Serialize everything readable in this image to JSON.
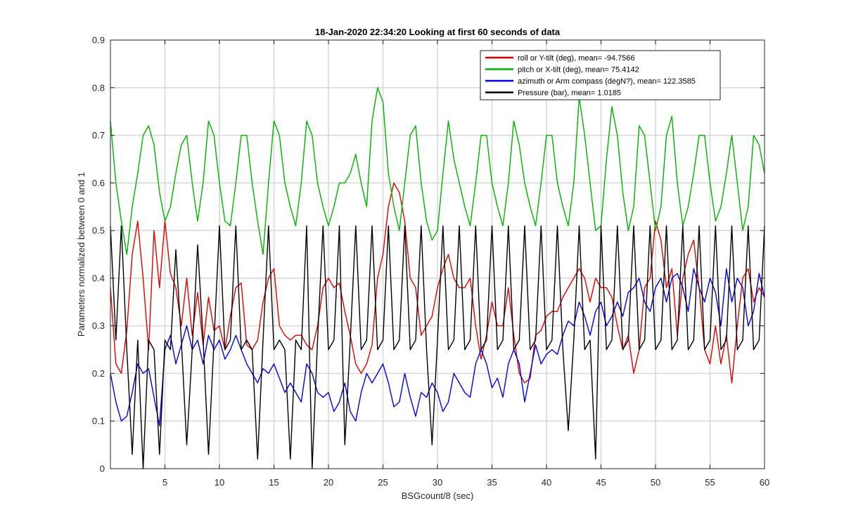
{
  "chart_data": {
    "type": "line",
    "title": "18-Jan-2020 22:34:20 Looking at first 60 seconds of data",
    "xlabel": "BSGcount/8 (sec)",
    "ylabel": "Parameters normalized between 0 and 1",
    "xlim": [
      0,
      60
    ],
    "ylim": [
      0,
      0.9
    ],
    "xticks": [
      5,
      10,
      15,
      20,
      25,
      30,
      35,
      40,
      45,
      50,
      55,
      60
    ],
    "yticks": [
      0,
      0.1,
      0.2,
      0.3,
      0.4,
      0.5,
      0.6,
      0.7,
      0.8,
      0.9
    ],
    "grid": true,
    "legend_position": "top-right",
    "series": [
      {
        "name": "roll or Y-tilt (deg), mean= -94.7566",
        "color": "#e00000",
        "x": [
          0,
          0.5,
          1,
          1.5,
          2,
          2.5,
          3,
          3.5,
          4,
          4.5,
          5,
          5.5,
          6,
          6.5,
          7,
          7.5,
          8,
          8.5,
          9,
          9.5,
          10,
          10.5,
          11,
          11.5,
          12,
          12.5,
          13,
          13.5,
          14,
          14.5,
          15,
          15.5,
          16,
          16.5,
          17,
          17.5,
          18,
          18.5,
          19,
          19.5,
          20,
          20.5,
          21,
          21.5,
          22,
          22.5,
          23,
          23.5,
          24,
          24.5,
          25,
          25.5,
          26,
          26.5,
          27,
          27.5,
          28,
          28.5,
          29,
          29.5,
          30,
          30.5,
          31,
          31.5,
          32,
          32.5,
          33,
          33.5,
          34,
          34.5,
          35,
          35.5,
          36,
          36.5,
          37,
          37.5,
          38,
          38.5,
          39,
          39.5,
          40,
          40.5,
          41,
          41.5,
          42,
          42.5,
          43,
          43.5,
          44,
          44.5,
          45,
          45.5,
          46,
          46.5,
          47,
          47.5,
          48,
          48.5,
          49,
          49.5,
          50,
          50.5,
          51,
          51.5,
          52,
          52.5,
          53,
          53.5,
          54,
          54.5,
          55,
          55.5,
          56,
          56.5,
          57,
          57.5,
          58,
          58.5,
          59,
          59.5,
          60
        ],
        "y": [
          0.38,
          0.22,
          0.2,
          0.29,
          0.45,
          0.52,
          0.4,
          0.25,
          0.5,
          0.38,
          0.52,
          0.41,
          0.38,
          0.3,
          0.4,
          0.28,
          0.37,
          0.26,
          0.36,
          0.29,
          0.3,
          0.25,
          0.32,
          0.38,
          0.39,
          0.26,
          0.25,
          0.27,
          0.35,
          0.4,
          0.42,
          0.3,
          0.28,
          0.27,
          0.28,
          0.28,
          0.26,
          0.25,
          0.3,
          0.38,
          0.4,
          0.38,
          0.39,
          0.33,
          0.28,
          0.22,
          0.2,
          0.22,
          0.26,
          0.4,
          0.45,
          0.55,
          0.6,
          0.58,
          0.52,
          0.4,
          0.38,
          0.28,
          0.3,
          0.32,
          0.38,
          0.42,
          0.45,
          0.4,
          0.38,
          0.38,
          0.4,
          0.3,
          0.23,
          0.28,
          0.35,
          0.3,
          0.3,
          0.38,
          0.28,
          0.2,
          0.18,
          0.19,
          0.28,
          0.29,
          0.32,
          0.33,
          0.33,
          0.36,
          0.38,
          0.4,
          0.42,
          0.4,
          0.35,
          0.4,
          0.38,
          0.38,
          0.36,
          0.3,
          0.25,
          0.28,
          0.2,
          0.25,
          0.38,
          0.4,
          0.52,
          0.48,
          0.38,
          0.42,
          0.28,
          0.4,
          0.45,
          0.48,
          0.38,
          0.25,
          0.22,
          0.3,
          0.22,
          0.28,
          0.18,
          0.3,
          0.4,
          0.42,
          0.35,
          0.38,
          0.36
        ]
      },
      {
        "name": "pitch or X-tilt (deg), mean= 75.4142",
        "color": "#00b000",
        "x": [
          0,
          0.5,
          1,
          1.5,
          2,
          2.5,
          3,
          3.5,
          4,
          4.5,
          5,
          5.5,
          6,
          6.5,
          7,
          7.5,
          8,
          8.5,
          9,
          9.5,
          10,
          10.5,
          11,
          11.5,
          12,
          12.5,
          13,
          13.5,
          14,
          14.5,
          15,
          15.5,
          16,
          16.5,
          17,
          17.5,
          18,
          18.5,
          19,
          19.5,
          20,
          20.5,
          21,
          21.5,
          22,
          22.5,
          23,
          23.5,
          24,
          24.5,
          25,
          25.5,
          26,
          26.5,
          27,
          27.5,
          28,
          28.5,
          29,
          29.5,
          30,
          30.5,
          31,
          31.5,
          32,
          32.5,
          33,
          33.5,
          34,
          34.5,
          35,
          35.5,
          36,
          36.5,
          37,
          37.5,
          38,
          38.5,
          39,
          39.5,
          40,
          40.5,
          41,
          41.5,
          42,
          42.5,
          43,
          43.5,
          44,
          44.5,
          45,
          45.5,
          46,
          46.5,
          47,
          47.5,
          48,
          48.5,
          49,
          49.5,
          50,
          50.5,
          51,
          51.5,
          52,
          52.5,
          53,
          53.5,
          54,
          54.5,
          55,
          55.5,
          56,
          56.5,
          57,
          57.5,
          58,
          58.5,
          59,
          59.5,
          60
        ],
        "y": [
          0.73,
          0.6,
          0.52,
          0.45,
          0.55,
          0.62,
          0.7,
          0.72,
          0.68,
          0.58,
          0.52,
          0.55,
          0.62,
          0.68,
          0.7,
          0.6,
          0.52,
          0.6,
          0.73,
          0.7,
          0.6,
          0.52,
          0.51,
          0.6,
          0.7,
          0.7,
          0.6,
          0.52,
          0.45,
          0.6,
          0.73,
          0.7,
          0.6,
          0.55,
          0.51,
          0.6,
          0.73,
          0.7,
          0.6,
          0.55,
          0.51,
          0.55,
          0.6,
          0.6,
          0.62,
          0.66,
          0.6,
          0.55,
          0.73,
          0.8,
          0.77,
          0.62,
          0.55,
          0.5,
          0.6,
          0.7,
          0.72,
          0.6,
          0.52,
          0.48,
          0.5,
          0.62,
          0.73,
          0.65,
          0.6,
          0.55,
          0.51,
          0.6,
          0.7,
          0.7,
          0.6,
          0.55,
          0.51,
          0.6,
          0.73,
          0.68,
          0.6,
          0.55,
          0.51,
          0.6,
          0.7,
          0.7,
          0.6,
          0.55,
          0.51,
          0.6,
          0.78,
          0.7,
          0.6,
          0.5,
          0.51,
          0.65,
          0.76,
          0.7,
          0.58,
          0.5,
          0.55,
          0.72,
          0.7,
          0.6,
          0.5,
          0.55,
          0.7,
          0.74,
          0.6,
          0.51,
          0.55,
          0.62,
          0.7,
          0.7,
          0.6,
          0.52,
          0.55,
          0.62,
          0.7,
          0.6,
          0.5,
          0.55,
          0.7,
          0.68,
          0.62
        ]
      },
      {
        "name": "azimuth or Arm compass (degN?), mean= 122.3585",
        "color": "#0000e0",
        "x": [
          0,
          0.5,
          1,
          1.5,
          2,
          2.5,
          3,
          3.5,
          4,
          4.5,
          5,
          5.5,
          6,
          6.5,
          7,
          7.5,
          8,
          8.5,
          9,
          9.5,
          10,
          10.5,
          11,
          11.5,
          12,
          12.5,
          13,
          13.5,
          14,
          14.5,
          15,
          15.5,
          16,
          16.5,
          17,
          17.5,
          18,
          18.5,
          19,
          19.5,
          20,
          20.5,
          21,
          21.5,
          22,
          22.5,
          23,
          23.5,
          24,
          24.5,
          25,
          25.5,
          26,
          26.5,
          27,
          27.5,
          28,
          28.5,
          29,
          29.5,
          30,
          30.5,
          31,
          31.5,
          32,
          32.5,
          33,
          33.5,
          34,
          34.5,
          35,
          35.5,
          36,
          36.5,
          37,
          37.5,
          38,
          38.5,
          39,
          39.5,
          40,
          40.5,
          41,
          41.5,
          42,
          42.5,
          43,
          43.5,
          44,
          44.5,
          45,
          45.5,
          46,
          46.5,
          47,
          47.5,
          48,
          48.5,
          49,
          49.5,
          50,
          50.5,
          51,
          51.5,
          52,
          52.5,
          53,
          53.5,
          54,
          54.5,
          55,
          55.5,
          56,
          56.5,
          57,
          57.5,
          58,
          58.5,
          59,
          59.5,
          60
        ],
        "y": [
          0.2,
          0.14,
          0.1,
          0.11,
          0.16,
          0.22,
          0.2,
          0.21,
          0.15,
          0.09,
          0.25,
          0.28,
          0.22,
          0.26,
          0.3,
          0.25,
          0.27,
          0.22,
          0.28,
          0.25,
          0.27,
          0.23,
          0.25,
          0.28,
          0.25,
          0.22,
          0.2,
          0.18,
          0.21,
          0.2,
          0.22,
          0.19,
          0.16,
          0.18,
          0.16,
          0.14,
          0.22,
          0.2,
          0.16,
          0.15,
          0.16,
          0.12,
          0.14,
          0.18,
          0.12,
          0.1,
          0.16,
          0.2,
          0.18,
          0.2,
          0.22,
          0.18,
          0.13,
          0.14,
          0.2,
          0.15,
          0.11,
          0.16,
          0.15,
          0.18,
          0.16,
          0.12,
          0.14,
          0.2,
          0.18,
          0.16,
          0.15,
          0.22,
          0.25,
          0.22,
          0.17,
          0.19,
          0.15,
          0.22,
          0.25,
          0.22,
          0.14,
          0.2,
          0.26,
          0.22,
          0.24,
          0.25,
          0.24,
          0.28,
          0.31,
          0.3,
          0.35,
          0.32,
          0.28,
          0.33,
          0.35,
          0.3,
          0.32,
          0.35,
          0.32,
          0.37,
          0.38,
          0.4,
          0.35,
          0.33,
          0.38,
          0.4,
          0.35,
          0.4,
          0.41,
          0.38,
          0.33,
          0.42,
          0.38,
          0.35,
          0.4,
          0.37,
          0.3,
          0.42,
          0.35,
          0.4,
          0.38,
          0.3,
          0.33,
          0.41,
          0.36
        ]
      },
      {
        "name": "Pressure (bar), mean= 1.0185",
        "color": "#000000",
        "x": [
          0,
          0.5,
          1,
          1.5,
          2,
          2.5,
          3,
          3.5,
          4,
          4.5,
          5,
          5.5,
          6,
          6.5,
          7,
          7.5,
          8,
          8.5,
          9,
          9.5,
          10,
          10.5,
          11,
          11.5,
          12,
          12.5,
          13,
          13.5,
          14,
          14.5,
          15,
          15.5,
          16,
          16.5,
          17,
          17.5,
          18,
          18.5,
          19,
          19.5,
          20,
          20.5,
          21,
          21.5,
          22,
          22.5,
          23,
          23.5,
          24,
          24.5,
          25,
          25.5,
          26,
          26.5,
          27,
          27.5,
          28,
          28.5,
          29,
          29.5,
          30,
          30.5,
          31,
          31.5,
          32,
          32.5,
          33,
          33.5,
          34,
          34.5,
          35,
          35.5,
          36,
          36.5,
          37,
          37.5,
          38,
          38.5,
          39,
          39.5,
          40,
          40.5,
          41,
          41.5,
          42,
          42.5,
          43,
          43.5,
          44,
          44.5,
          45,
          45.5,
          46,
          46.5,
          47,
          47.5,
          48,
          48.5,
          49,
          49.5,
          50,
          50.5,
          51,
          51.5,
          52,
          52.5,
          53,
          53.5,
          54,
          54.5,
          55,
          55.5,
          56,
          56.5,
          57,
          57.5,
          58,
          58.5,
          59,
          59.5,
          60
        ],
        "y": [
          0.51,
          0.27,
          0.51,
          0.25,
          0.03,
          0.27,
          0,
          0.27,
          0.25,
          0.03,
          0.27,
          0.25,
          0.46,
          0.27,
          0.05,
          0.25,
          0.47,
          0.27,
          0.03,
          0.27,
          0.51,
          0.25,
          0.27,
          0.51,
          0.25,
          0.27,
          0.25,
          0.02,
          0.27,
          0.51,
          0.25,
          0.27,
          0.25,
          0.02,
          0.27,
          0.25,
          0.51,
          0,
          0.27,
          0.51,
          0.25,
          0.27,
          0.51,
          0.05,
          0.27,
          0.51,
          0.25,
          0.27,
          0.51,
          0.25,
          0.27,
          0.51,
          0.25,
          0.27,
          0.51,
          0.25,
          0.27,
          0.51,
          0.25,
          0.05,
          0.27,
          0.51,
          0.25,
          0.27,
          0.51,
          0.25,
          0.27,
          0.51,
          0.25,
          0.27,
          0.51,
          0.25,
          0.27,
          0.51,
          0.25,
          0.27,
          0.51,
          0.25,
          0.27,
          0.51,
          0.25,
          0.27,
          0.51,
          0.25,
          0.08,
          0.27,
          0.51,
          0.25,
          0.27,
          0.02,
          0.51,
          0.25,
          0.27,
          0.51,
          0.25,
          0.27,
          0.51,
          0.25,
          0.27,
          0.51,
          0.25,
          0.27,
          0.51,
          0.25,
          0.27,
          0.51,
          0.25,
          0.27,
          0.51,
          0.25,
          0.27,
          0.51,
          0.25,
          0.27,
          0.51,
          0.25,
          0.27,
          0.51,
          0.25,
          0.27,
          0.51
        ]
      }
    ]
  }
}
